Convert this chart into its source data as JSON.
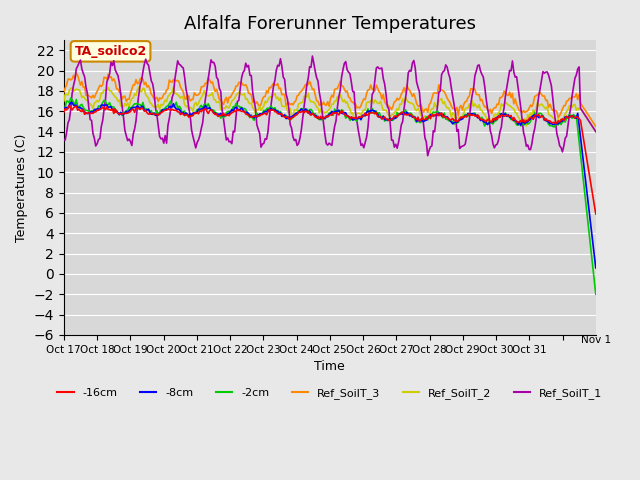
{
  "title": "Alfalfa Forerunner Temperatures",
  "xlabel": "Time",
  "ylabel": "Temperatures (C)",
  "annotation": "TA_soilco2",
  "ylim": [
    -6,
    23
  ],
  "yticks": [
    -6,
    -4,
    -2,
    0,
    2,
    4,
    6,
    8,
    10,
    12,
    14,
    16,
    18,
    20,
    22
  ],
  "background_color": "#e8e8e8",
  "plot_bg_color": "#d8d8d8",
  "x_tick_labels": [
    "Oct 17",
    "Oct 18",
    "Oct 19",
    "Oct 20",
    "Oct 21",
    "Oct 22",
    "Oct 23",
    "Oct 24",
    "Oct 25",
    "Oct 26",
    "Oct 27",
    "Oct 28",
    "Oct 29",
    "Oct 30",
    "Oct 31",
    "Nov 1"
  ],
  "colors": {
    "purple": "#aa00aa",
    "orange": "#ff8800",
    "yellow": "#cccc00",
    "green": "#00cc00",
    "blue": "#0000ff",
    "red": "#ff0000"
  },
  "legend_labels": [
    "-16cm",
    "-8cm",
    "-2cm",
    "Ref_SoilT_3",
    "Ref_SoilT_2",
    "Ref_SoilT_1"
  ]
}
